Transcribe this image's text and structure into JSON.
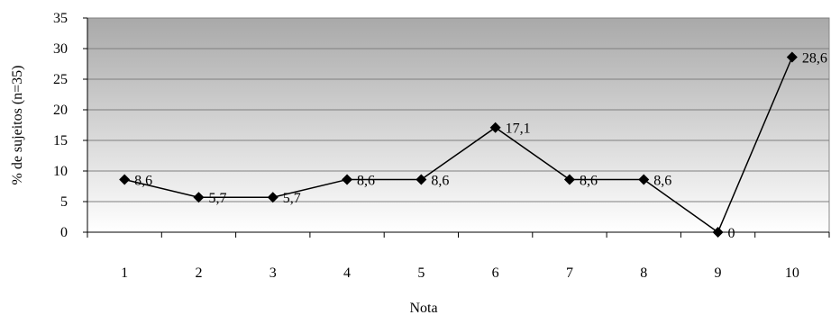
{
  "chart_data": {
    "type": "line",
    "title": "",
    "xlabel": "Nota",
    "ylabel": "% de sujeitos (n=35)",
    "categories": [
      "1",
      "2",
      "3",
      "4",
      "5",
      "6",
      "7",
      "8",
      "9",
      "10"
    ],
    "values": [
      8.6,
      5.7,
      5.7,
      8.6,
      8.6,
      17.1,
      8.6,
      8.6,
      0,
      28.6
    ],
    "data_labels": [
      "8,6",
      "5,7",
      "5,7",
      "8,6",
      "8,6",
      "17,1",
      "8,6",
      "8,6",
      "0",
      "28,6"
    ],
    "yticks": [
      "0",
      "5",
      "10",
      "15",
      "20",
      "25",
      "30",
      "35"
    ],
    "ylim": [
      0,
      35
    ],
    "grid": true,
    "legend": "none",
    "plot_background": "gradient gray to white",
    "line_color": "#000000",
    "marker": "diamond"
  }
}
